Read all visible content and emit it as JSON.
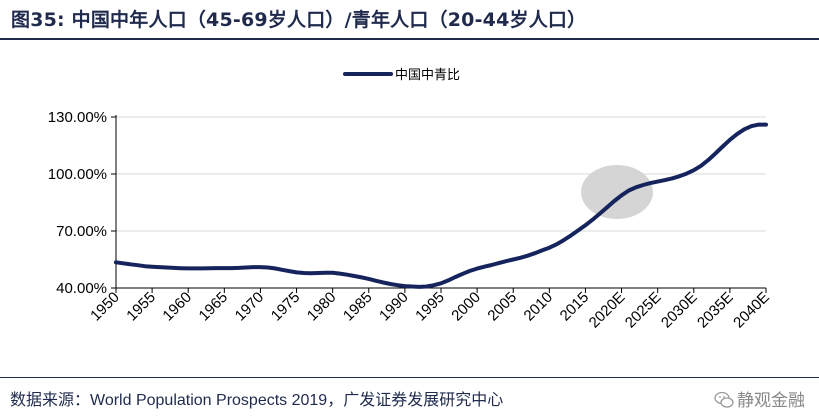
{
  "header": {
    "title": "图35:  中国中年人口（45-69岁人口）/青年人口（20-44岁人口）"
  },
  "footer": {
    "source_prefix": "数据来源：",
    "source_main": "World Population Prospects 2019",
    "source_suffix": "，广发证券发展研究中心",
    "watermark": "静观金融"
  },
  "colors": {
    "line": "#15245c",
    "highlight": "#d0d0d0",
    "grid": "#d9d9d9",
    "text": "#1f2a4d"
  },
  "chart_data": {
    "type": "line",
    "title": "",
    "xlabel": "",
    "ylabel": "",
    "legend": "top-center",
    "grid": true,
    "y_tick_labels": [
      "40.00%",
      "70.00%",
      "100.00%",
      "130.00%"
    ],
    "y_ticks": [
      40,
      70,
      100,
      130
    ],
    "ylim": [
      40,
      130
    ],
    "categories": [
      "1950",
      "1955",
      "1960",
      "1965",
      "1970",
      "1975",
      "1980",
      "1985",
      "1990",
      "1995",
      "2000",
      "2005",
      "2010",
      "2015",
      "2020E",
      "2025E",
      "2030E",
      "2035E",
      "2040E"
    ],
    "x": [
      1950,
      1955,
      1960,
      1965,
      1970,
      1975,
      1980,
      1985,
      1990,
      1995,
      2000,
      2005,
      2010,
      2015,
      2020,
      2025,
      2030,
      2035,
      2040
    ],
    "series": [
      {
        "name": "中国中青比",
        "x": [
          1950,
          1951,
          1952,
          1953,
          1954,
          1955,
          1956,
          1957,
          1958,
          1959,
          1960,
          1961,
          1962,
          1963,
          1964,
          1965,
          1966,
          1967,
          1968,
          1969,
          1970,
          1971,
          1972,
          1973,
          1974,
          1975,
          1976,
          1977,
          1978,
          1979,
          1980,
          1981,
          1982,
          1983,
          1984,
          1985,
          1986,
          1987,
          1988,
          1989,
          1990,
          1991,
          1992,
          1993,
          1994,
          1995,
          1996,
          1997,
          1998,
          1999,
          2000,
          2001,
          2002,
          2003,
          2004,
          2005,
          2006,
          2007,
          2008,
          2009,
          2010,
          2011,
          2012,
          2013,
          2014,
          2015,
          2016,
          2017,
          2018,
          2019,
          2020,
          2021,
          2022,
          2023,
          2024,
          2025,
          2026,
          2027,
          2028,
          2029,
          2030,
          2031,
          2032,
          2033,
          2034,
          2035,
          2036,
          2037,
          2038,
          2039,
          2040
        ],
        "values": [
          53.5,
          53.0,
          52.5,
          52.0,
          51.5,
          51.2,
          51.0,
          50.8,
          50.6,
          50.4,
          50.3,
          50.3,
          50.3,
          50.4,
          50.5,
          50.5,
          50.5,
          50.6,
          50.8,
          51.0,
          51.0,
          50.8,
          50.3,
          49.6,
          48.9,
          48.2,
          47.9,
          47.8,
          47.9,
          48.0,
          48.0,
          47.6,
          47.0,
          46.3,
          45.6,
          44.8,
          43.8,
          42.9,
          42.1,
          41.5,
          41.0,
          40.8,
          40.6,
          40.8,
          41.5,
          42.5,
          44.0,
          45.8,
          47.5,
          49.0,
          50.2,
          51.2,
          52.1,
          53.1,
          54.1,
          55.0,
          55.9,
          57.0,
          58.3,
          59.8,
          61.2,
          63.0,
          65.2,
          67.7,
          70.3,
          73.0,
          76.0,
          79.2,
          82.5,
          85.8,
          88.8,
          91.3,
          93.0,
          94.2,
          95.2,
          96.0,
          96.8,
          97.7,
          98.8,
          100.2,
          102.0,
          104.3,
          107.3,
          110.8,
          114.5,
          118.0,
          121.0,
          123.5,
          125.2,
          126.0,
          126.0
        ]
      }
    ],
    "annotations": [
      {
        "type": "ellipse-highlight",
        "center_x": 2021,
        "center_y": 91
      }
    ]
  }
}
